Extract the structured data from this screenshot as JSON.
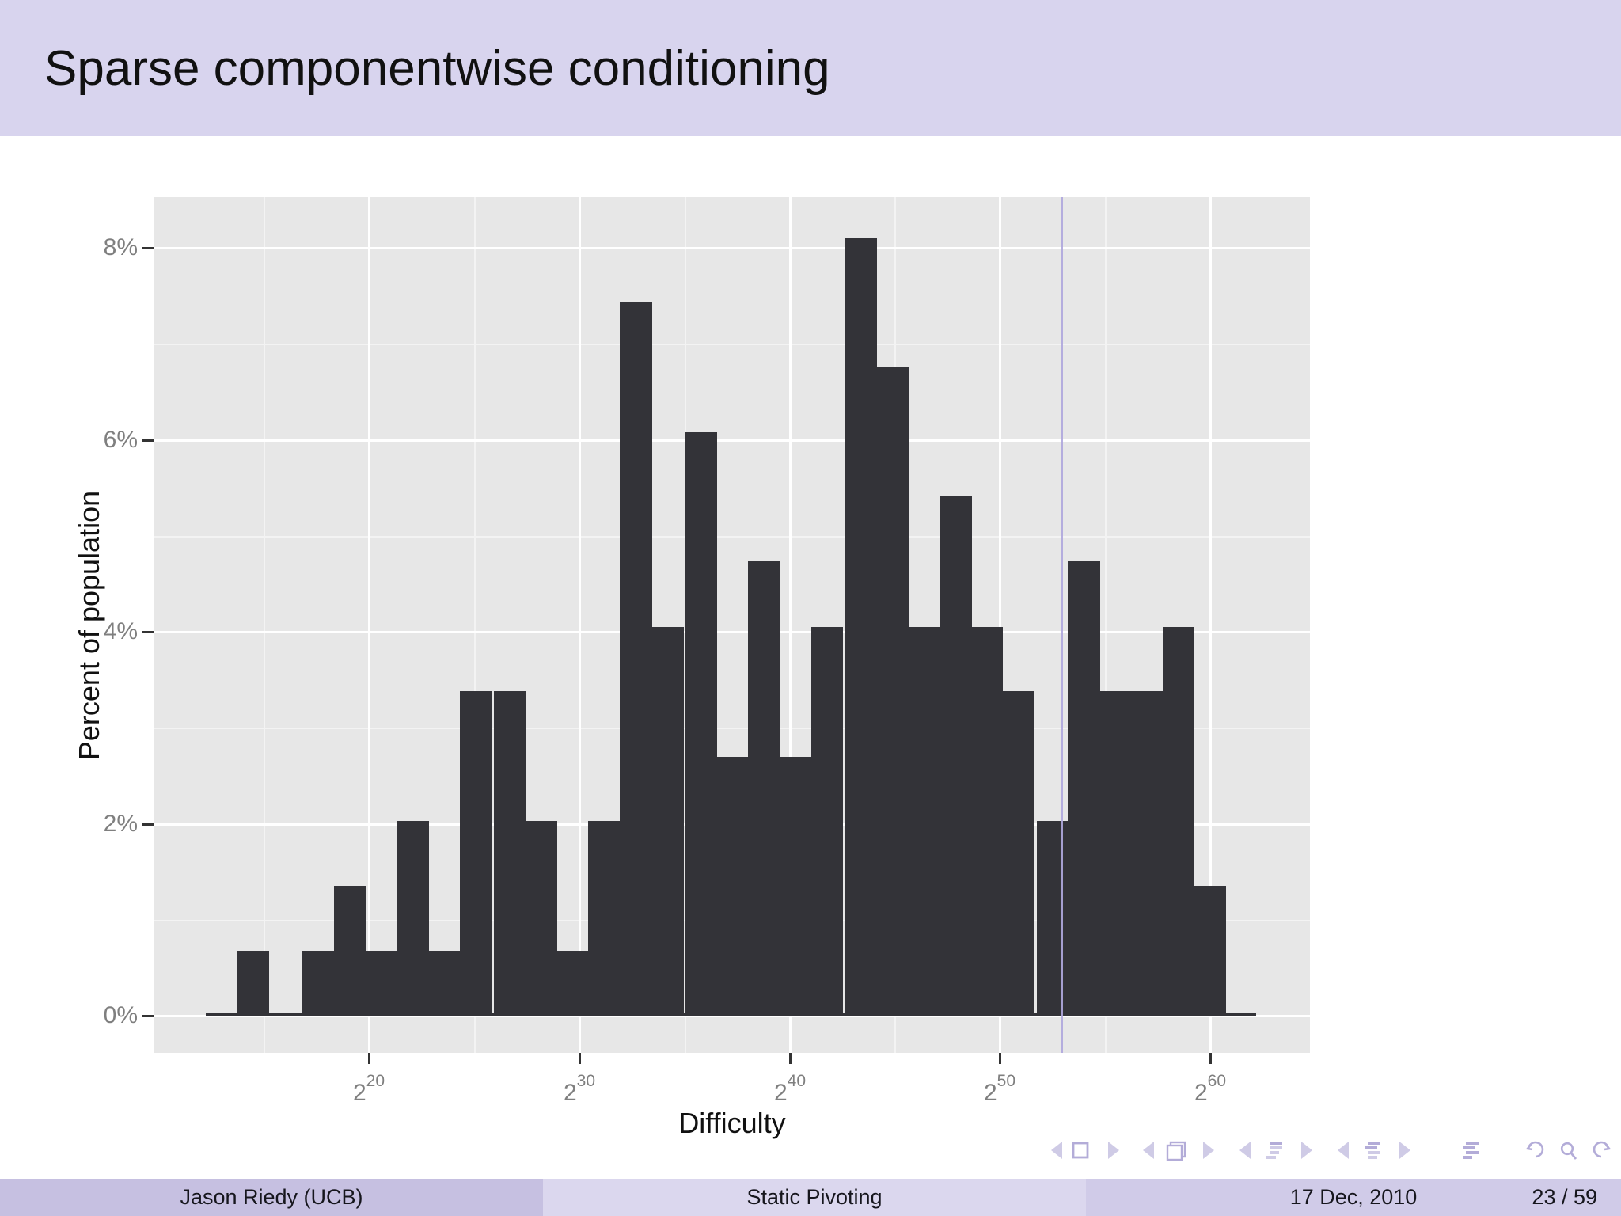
{
  "slide": {
    "title": "Sparse componentwise conditioning"
  },
  "footer": {
    "author": "Jason Riedy  (UCB)",
    "talk_title": "Static Pivoting",
    "date": "17 Dec, 2010",
    "page": "23 / 59"
  },
  "nav": {
    "icons": [
      "prev-slide-icon",
      "slide-icon",
      "next-slide-icon",
      "prev-frame-icon",
      "frames-icon",
      "next-frame-icon",
      "prev-subsection-icon",
      "subsection-outline-icon",
      "next-subsection-icon",
      "prev-section-icon",
      "section-outline-icon",
      "next-section-icon",
      "document-outline-icon",
      "undo-history-icon",
      "search-icon",
      "redo-history-icon"
    ]
  },
  "chart_data": {
    "type": "bar",
    "subtype": "histogram",
    "title": "",
    "xlabel": "Difficulty",
    "ylabel": "Percent of population",
    "x_scale": "log2",
    "legend": "none",
    "grid": "on",
    "x_ticks": [
      {
        "exp": 20,
        "base": "2",
        "sup": "20"
      },
      {
        "exp": 30,
        "base": "2",
        "sup": "30"
      },
      {
        "exp": 40,
        "base": "2",
        "sup": "40"
      },
      {
        "exp": 50,
        "base": "2",
        "sup": "50"
      },
      {
        "exp": 60,
        "base": "2",
        "sup": "60"
      }
    ],
    "x_minor_tick_exps": [
      15,
      25,
      35,
      45,
      55
    ],
    "y_ticks": [
      {
        "value": 0,
        "label": "0%"
      },
      {
        "value": 2,
        "label": "2%"
      },
      {
        "value": 4,
        "label": "4%"
      },
      {
        "value": 6,
        "label": "6%"
      },
      {
        "value": 8,
        "label": "8%"
      }
    ],
    "y_minor_values": [
      1,
      3,
      5,
      7
    ],
    "xlim_exp": [
      9.8,
      64.75
    ],
    "ylim_pct": [
      0,
      8.53
    ],
    "bin_width_exp": 1.517,
    "unit_pct": 0.676,
    "total_count_units": 148,
    "bins_center_exp": [
      14.5,
      16.0,
      17.6,
      19.1,
      20.6,
      22.1,
      23.6,
      25.1,
      26.7,
      28.2,
      29.7,
      31.2,
      32.7,
      34.2,
      35.8,
      37.3,
      38.8,
      40.3,
      41.8,
      43.4,
      44.9,
      46.4,
      47.9,
      49.4,
      50.9,
      52.5,
      54.0,
      55.5,
      57.0,
      58.5,
      60.0
    ],
    "bin_counts": [
      1,
      0,
      1,
      2,
      1,
      3,
      1,
      5,
      5,
      3,
      1,
      3,
      11,
      6,
      9,
      4,
      7,
      4,
      6,
      12,
      10,
      6,
      8,
      6,
      5,
      3,
      7,
      5,
      5,
      6,
      2
    ],
    "bins_pct": [
      0.68,
      0,
      0.68,
      1.35,
      0.68,
      2.03,
      0.68,
      3.38,
      3.38,
      2.03,
      0.68,
      2.03,
      7.43,
      4.05,
      6.08,
      2.7,
      4.73,
      2.7,
      4.05,
      8.11,
      6.76,
      4.05,
      5.41,
      4.05,
      3.38,
      2.03,
      4.73,
      3.38,
      3.38,
      4.05,
      1.35
    ],
    "vline_exp": 52.9,
    "baseline_strip_exp": [
      12.25,
      62.2
    ],
    "baseline_strip_pct": 0.03,
    "colors": {
      "bar": "#333338",
      "panel": "#e7e7e7",
      "grid_major": "#ffffff",
      "grid_minor": "#f3f3f3",
      "vline": "#b0a8dd",
      "tick_text": "#7f7f7f",
      "tick_mark": "#333333",
      "title_band": "#d8d4ee",
      "nav_symbol": "#b3acd8"
    }
  }
}
